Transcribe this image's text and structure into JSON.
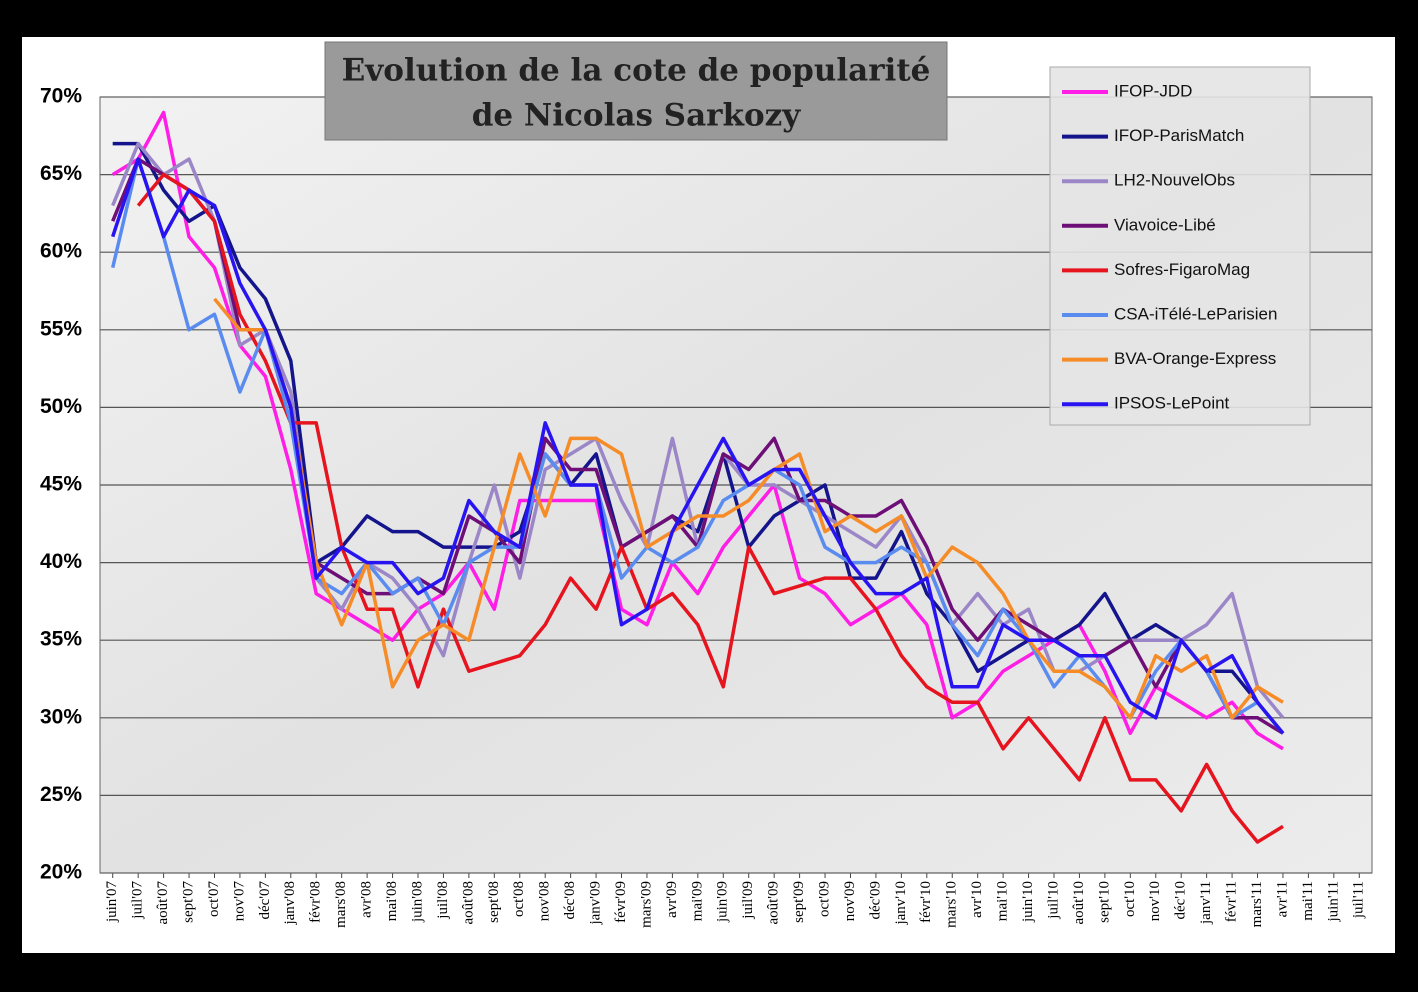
{
  "chart_data": {
    "type": "line",
    "title": "Evolution de la cote de popularité",
    "subtitle": "de Nicolas Sarkozy",
    "categories": [
      "juin'07",
      "juil'07",
      "août'07",
      "sept'07",
      "oct'07",
      "nov'07",
      "déc'07",
      "janv'08",
      "févr'08",
      "mars'08",
      "avr'08",
      "mai'08",
      "juin'08",
      "juil'08",
      "août'08",
      "sept'08",
      "oct'08",
      "nov'08",
      "déc'08",
      "janv'09",
      "févr'09",
      "mars'09",
      "avr'09",
      "mai'09",
      "juin'09",
      "juil'09",
      "août'09",
      "sept'09",
      "oct'09",
      "nov'09",
      "déc'09",
      "janv'10",
      "févr'10",
      "mars'10",
      "avr'10",
      "mai'10",
      "juin'10",
      "juil'10",
      "août'10",
      "sept'10",
      "oct'10",
      "nov'10",
      "déc'10",
      "janv'11",
      "févr'11",
      "mars'11",
      "avr'11",
      "mai'11",
      "juin'11",
      "juil'11"
    ],
    "ylim": [
      20,
      70
    ],
    "yticks": [
      {
        "value": 20,
        "label": "20%"
      },
      {
        "value": 25,
        "label": "25%"
      },
      {
        "value": 30,
        "label": "30%"
      },
      {
        "value": 35,
        "label": "35%"
      },
      {
        "value": 40,
        "label": "40%"
      },
      {
        "value": 45,
        "label": "45%"
      },
      {
        "value": 50,
        "label": "50%"
      },
      {
        "value": 55,
        "label": "55%"
      },
      {
        "value": 60,
        "label": "60%"
      },
      {
        "value": 65,
        "label": "65%"
      },
      {
        "value": 70,
        "label": "70%"
      }
    ],
    "grid": true,
    "legend": "top-right",
    "series": [
      {
        "name": "IFOP-JDD",
        "color": "#ff1ee6",
        "values": [
          65,
          66,
          69,
          61,
          59,
          54,
          52,
          46,
          38,
          37,
          36,
          35,
          37,
          38,
          40,
          37,
          44,
          44,
          44,
          44,
          37,
          36,
          40,
          38,
          41,
          43,
          45,
          39,
          38,
          36,
          37,
          38,
          36,
          30,
          31,
          33,
          34,
          35,
          36,
          33,
          29,
          32,
          31,
          30,
          31,
          29,
          28,
          null,
          null,
          null
        ]
      },
      {
        "name": "IFOP-ParisMatch",
        "color": "#14148c",
        "values": [
          67,
          67,
          64,
          62,
          63,
          59,
          57,
          53,
          40,
          41,
          43,
          42,
          42,
          41,
          41,
          41,
          42,
          47,
          45,
          47,
          41,
          42,
          43,
          42,
          47,
          41,
          43,
          44,
          45,
          39,
          39,
          42,
          38,
          36,
          33,
          34,
          35,
          35,
          36,
          38,
          35,
          36,
          35,
          33,
          33,
          31,
          29,
          null,
          null,
          null
        ]
      },
      {
        "name": "LH2-NouvelObs",
        "color": "#9b87c8",
        "values": [
          63,
          67,
          65,
          66,
          62,
          54,
          55,
          51,
          39,
          37,
          40,
          39,
          37,
          34,
          40,
          45,
          39,
          46,
          47,
          48,
          44,
          41,
          48,
          41,
          47,
          45,
          45,
          44,
          43,
          42,
          41,
          43,
          40,
          36,
          38,
          36,
          37,
          33,
          33,
          34,
          35,
          35,
          35,
          36,
          38,
          32,
          30,
          null,
          null,
          null
        ]
      },
      {
        "name": "Viavoice-Libé",
        "color": "#6e0f78",
        "values": [
          62,
          66,
          65,
          64,
          62,
          55,
          55,
          50,
          40,
          39,
          38,
          38,
          39,
          38,
          43,
          42,
          40,
          48,
          46,
          46,
          41,
          42,
          43,
          41,
          47,
          46,
          48,
          44,
          44,
          43,
          43,
          44,
          41,
          37,
          35,
          37,
          36,
          35,
          34,
          34,
          35,
          32,
          35,
          33,
          30,
          30,
          29,
          null,
          null,
          null
        ]
      },
      {
        "name": "Sofres-FigaroMag",
        "color": "#e6141e",
        "values": [
          null,
          63,
          65,
          64,
          62,
          56,
          53,
          49,
          49,
          41,
          37,
          37,
          32,
          37,
          33,
          33.5,
          34,
          36,
          39,
          37,
          41,
          37,
          38,
          36,
          32,
          41,
          38,
          38.5,
          39,
          39,
          37,
          34,
          32,
          31,
          31,
          28,
          30,
          28,
          26,
          30,
          26,
          26,
          24,
          27,
          24,
          22,
          23,
          null,
          null,
          null
        ]
      },
      {
        "name": "CSA-iTélé-LeParisien",
        "color": "#5a8cf0",
        "values": [
          59,
          66,
          61,
          55,
          56,
          51,
          55,
          49,
          39,
          38,
          40,
          38,
          39,
          36,
          40,
          41,
          41,
          47,
          45,
          45,
          39,
          41,
          40,
          41,
          44,
          45,
          46,
          45,
          41,
          40,
          40,
          41,
          40,
          36,
          34,
          37,
          35,
          32,
          34,
          32,
          30,
          33,
          35,
          33,
          30,
          31,
          29,
          null,
          null,
          null
        ]
      },
      {
        "name": "BVA-Orange-Express",
        "color": "#f58c28",
        "values": [
          null,
          null,
          null,
          null,
          57,
          55,
          55,
          50,
          40,
          36,
          40,
          32,
          35,
          36,
          35,
          41,
          47,
          43,
          48,
          48,
          47,
          41,
          42,
          43,
          43,
          44,
          46,
          47,
          42,
          43,
          42,
          43,
          39,
          41,
          40,
          38,
          35,
          33,
          33,
          32,
          30,
          34,
          33,
          34,
          30,
          32,
          31,
          null,
          null,
          null
        ]
      },
      {
        "name": "IPSOS-LePoint",
        "color": "#2814f0",
        "values": [
          61,
          66,
          61,
          64,
          63,
          58,
          55,
          50,
          39,
          41,
          40,
          40,
          38,
          39,
          44,
          42,
          41,
          49,
          45,
          45,
          36,
          37,
          42,
          45,
          48,
          45,
          46,
          46,
          43,
          40,
          38,
          38,
          39,
          32,
          32,
          36,
          35,
          35,
          34,
          34,
          31,
          30,
          35,
          33,
          34,
          31,
          29,
          null,
          null,
          null
        ]
      }
    ]
  }
}
